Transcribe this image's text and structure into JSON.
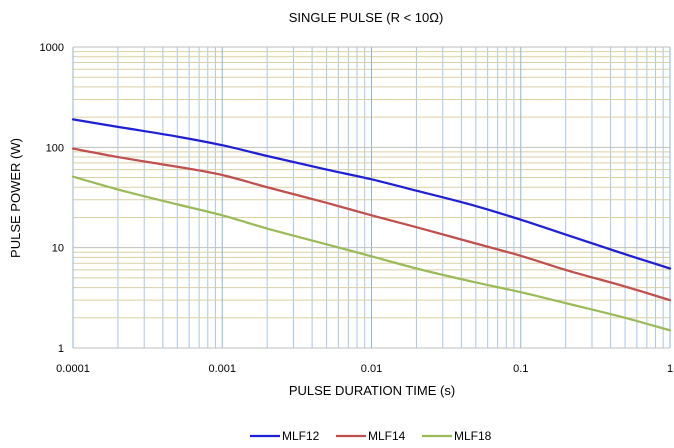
{
  "chart_data": {
    "type": "line",
    "title": "SINGLE PULSE (R < 10Ω)",
    "xlabel": "PULSE DURATION TIME (s)",
    "ylabel": "PULSE POWER (W)",
    "xscale": "log",
    "yscale": "log",
    "xlim": [
      0.0001,
      1
    ],
    "ylim": [
      1,
      1000
    ],
    "x_ticks": [
      "0.0001",
      "0.001",
      "0.01",
      "0.1",
      "1"
    ],
    "y_ticks": [
      "1",
      "10",
      "100",
      "1000"
    ],
    "grid": true,
    "legend_position": "bottom-center",
    "series": [
      {
        "name": "MLF12",
        "color": "#1f1fd6",
        "x": [
          0.0001,
          0.0002,
          0.0005,
          0.001,
          0.002,
          0.005,
          0.01,
          0.02,
          0.05,
          0.1,
          0.2,
          0.5,
          1
        ],
        "y": [
          190,
          160,
          128,
          105,
          82,
          60,
          48,
          37,
          26,
          19,
          13.5,
          8.6,
          6.2
        ]
      },
      {
        "name": "MLF14",
        "color": "#c0504d",
        "x": [
          0.0001,
          0.0002,
          0.0005,
          0.001,
          0.002,
          0.005,
          0.01,
          0.02,
          0.05,
          0.1,
          0.2,
          0.5,
          1
        ],
        "y": [
          97,
          80,
          64,
          53,
          40,
          28,
          21,
          16,
          11,
          8.3,
          6,
          4.1,
          3
        ]
      },
      {
        "name": "MLF18",
        "color": "#9bbb59",
        "x": [
          0.0001,
          0.0002,
          0.0005,
          0.001,
          0.002,
          0.005,
          0.01,
          0.02,
          0.05,
          0.1,
          0.2,
          0.5,
          1
        ],
        "y": [
          51,
          38,
          27,
          21,
          15.5,
          10.8,
          8.2,
          6.2,
          4.5,
          3.6,
          2.8,
          2,
          1.5
        ]
      }
    ]
  }
}
